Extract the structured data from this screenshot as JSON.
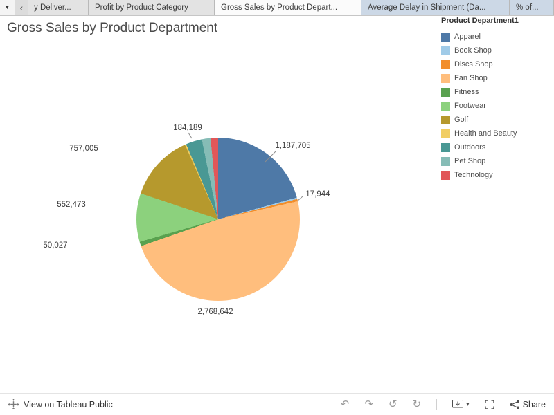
{
  "title": "Gross Sales by Product Department",
  "tabs": {
    "items": [
      {
        "label": "y Deliver...",
        "variant": "gray"
      },
      {
        "label": "Profit by Product Category",
        "variant": "gray"
      },
      {
        "label": "Gross Sales by Product Depart...",
        "variant": "active"
      },
      {
        "label": "Average Delay in Shipment (Da...",
        "variant": "blue"
      },
      {
        "label": "% of...",
        "variant": "blue"
      }
    ]
  },
  "legend": {
    "title": "Product Department1"
  },
  "chart_data": {
    "type": "pie",
    "title": "Gross Sales by Product Department",
    "legend_title": "Product Department1",
    "legend_position": "right",
    "slices": [
      {
        "name": "Apparel",
        "color": "#4E79A7",
        "value": 1187705,
        "value_label": "1,187,705",
        "angle_deg": 74.5
      },
      {
        "name": "Book Shop",
        "color": "#A0CBE8",
        "value": null,
        "value_label": null,
        "angle_deg": 1.1
      },
      {
        "name": "Discs Shop",
        "color": "#F28E2B",
        "value": 17944,
        "value_label": "17,944",
        "angle_deg": 1.6
      },
      {
        "name": "Fan Shop",
        "color": "#FFBE7D",
        "value": 2768642,
        "value_label": "2,768,642",
        "angle_deg": 173.6
      },
      {
        "name": "Fitness",
        "color": "#59A14F",
        "value": 50027,
        "value_label": "50,027",
        "angle_deg": 3.1
      },
      {
        "name": "Footwear",
        "color": "#8CD17D",
        "value": 552473,
        "value_label": "552,473",
        "angle_deg": 34.6
      },
      {
        "name": "Golf",
        "color": "#B6992D",
        "value": 757005,
        "value_label": "757,005",
        "angle_deg": 47.5
      },
      {
        "name": "Health and Beauty",
        "color": "#F1CE63",
        "value": null,
        "value_label": null,
        "angle_deg": 0.9
      },
      {
        "name": "Outdoors",
        "color": "#499894",
        "value": 184189,
        "value_label": "184,189",
        "angle_deg": 11.5
      },
      {
        "name": "Pet Shop",
        "color": "#86BCB6",
        "value": null,
        "value_label": null,
        "angle_deg": 6.3
      },
      {
        "name": "Technology",
        "color": "#E15759",
        "value": null,
        "value_label": null,
        "angle_deg": 5.3
      }
    ]
  },
  "footer": {
    "view_on": "View on Tableau Public",
    "share_label": "Share"
  },
  "icons": {
    "caret_down_small": "▼",
    "chevron_left": "‹",
    "undo": "↶",
    "redo": "↷",
    "revert": "↺",
    "refresh": "↻",
    "caret_down": "▾"
  }
}
